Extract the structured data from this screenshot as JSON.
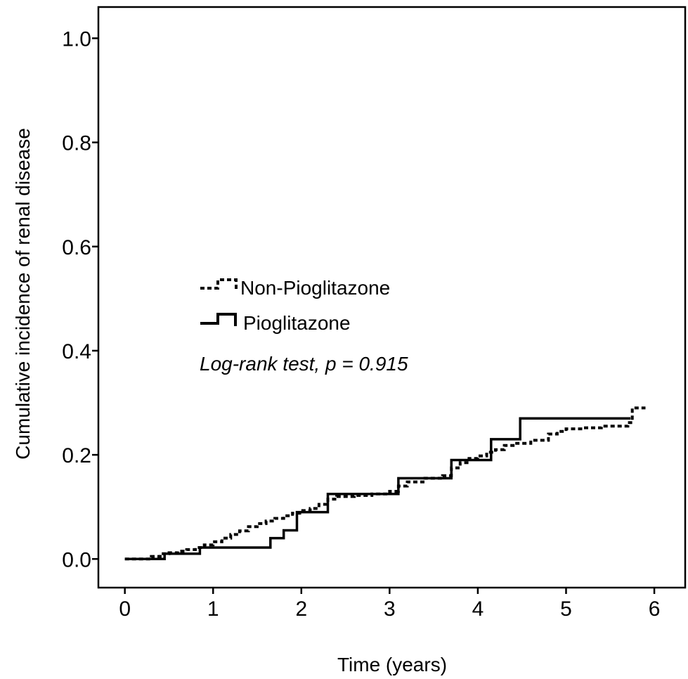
{
  "chart_data": {
    "type": "line",
    "step": true,
    "xlabel": "Time (years)",
    "ylabel": "Cumulative incidence of renal disease",
    "xlim": [
      -0.3,
      6.35
    ],
    "ylim": [
      -0.055,
      1.06
    ],
    "xticks": [
      0,
      1,
      2,
      3,
      4,
      5,
      6
    ],
    "yticks": [
      0.0,
      0.2,
      0.4,
      0.6,
      0.8,
      1.0
    ],
    "xtick_labels": [
      "0",
      "1",
      "2",
      "3",
      "4",
      "5",
      "6"
    ],
    "ytick_labels": [
      "0.0",
      "0.2",
      "0.4",
      "0.6",
      "0.8",
      "1.0"
    ],
    "grid": false,
    "legend_position": "middle-left",
    "annotation": "Log-rank test, p = 0.915",
    "series": [
      {
        "name": "Non-Pioglitazone",
        "style": "dashed",
        "x": [
          0,
          0.3,
          0.4,
          0.5,
          0.6,
          0.7,
          0.8,
          0.9,
          1.0,
          1.1,
          1.2,
          1.3,
          1.4,
          1.5,
          1.6,
          1.7,
          1.8,
          1.9,
          2.0,
          2.1,
          2.2,
          2.3,
          2.4,
          2.6,
          2.8,
          3.0,
          3.1,
          3.2,
          3.4,
          3.6,
          3.7,
          3.8,
          3.9,
          4.0,
          4.1,
          4.2,
          4.3,
          4.4,
          4.6,
          4.8,
          4.9,
          5.0,
          5.2,
          5.4,
          5.7,
          5.75,
          5.9
        ],
        "y": [
          0,
          0.005,
          0.01,
          0.012,
          0.015,
          0.018,
          0.022,
          0.027,
          0.033,
          0.04,
          0.047,
          0.054,
          0.062,
          0.068,
          0.073,
          0.078,
          0.083,
          0.088,
          0.093,
          0.097,
          0.105,
          0.115,
          0.12,
          0.122,
          0.125,
          0.13,
          0.14,
          0.148,
          0.155,
          0.16,
          0.175,
          0.185,
          0.193,
          0.198,
          0.205,
          0.21,
          0.218,
          0.222,
          0.228,
          0.24,
          0.245,
          0.25,
          0.252,
          0.255,
          0.262,
          0.29,
          0.29
        ]
      },
      {
        "name": "Pioglitazone",
        "style": "solid",
        "x": [
          0,
          0.45,
          0.85,
          1.65,
          1.8,
          1.95,
          2.3,
          3.1,
          3.7,
          4.15,
          4.48,
          5.73
        ],
        "y": [
          0,
          0.01,
          0.022,
          0.04,
          0.055,
          0.09,
          0.125,
          0.155,
          0.19,
          0.23,
          0.27,
          0.27
        ]
      }
    ]
  }
}
